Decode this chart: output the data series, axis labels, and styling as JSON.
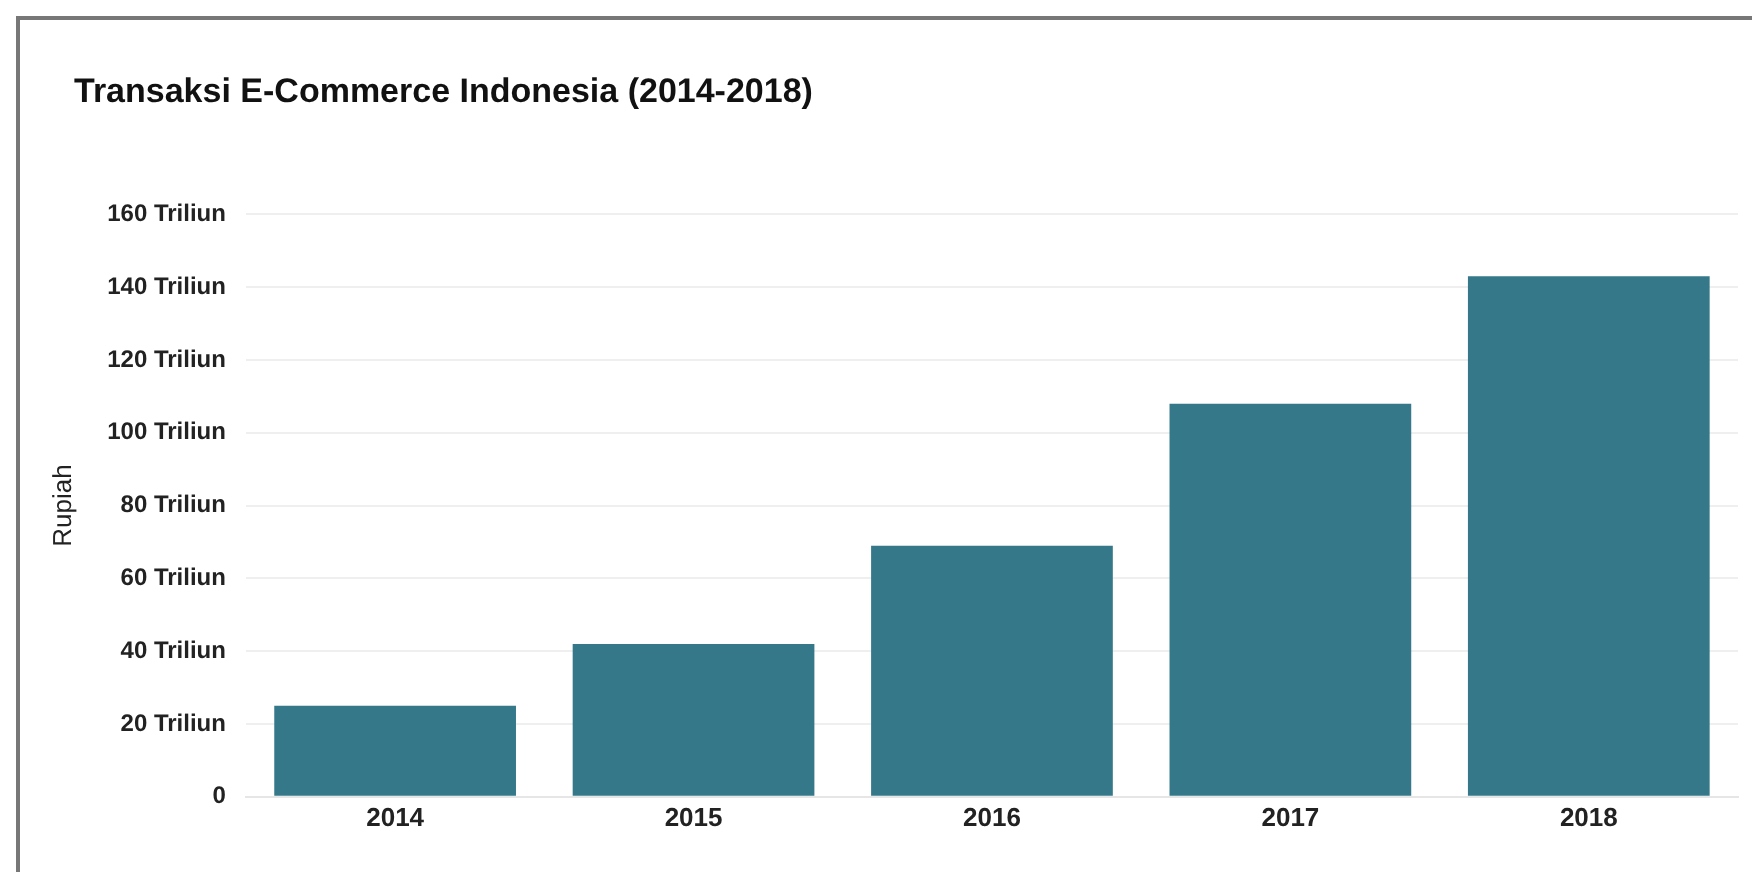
{
  "chart_data": {
    "type": "bar",
    "title": "Transaksi E-Commerce Indonesia (2014-2018)",
    "ylabel": "Rupiah",
    "categories": [
      "2014",
      "2015",
      "2016",
      "2017",
      "2018"
    ],
    "values": [
      25,
      42,
      69,
      108,
      143
    ],
    "color": "#34788a",
    "ylim": [
      0,
      160
    ],
    "yticks": [
      0,
      {
        "value": 20,
        "label": "20 Triliun"
      },
      {
        "value": 40,
        "label": "40 Triliun"
      },
      {
        "value": 60,
        "label": "60 Triliun"
      },
      {
        "value": 80,
        "label": "80 Triliun"
      },
      {
        "value": 100,
        "label": "100 Triliun"
      },
      {
        "value": 120,
        "label": "120 Triliun"
      },
      {
        "value": 140,
        "label": "140 Triliun"
      },
      {
        "value": 160,
        "label": "160 Triliun"
      }
    ],
    "grid": "y",
    "legend": false
  }
}
